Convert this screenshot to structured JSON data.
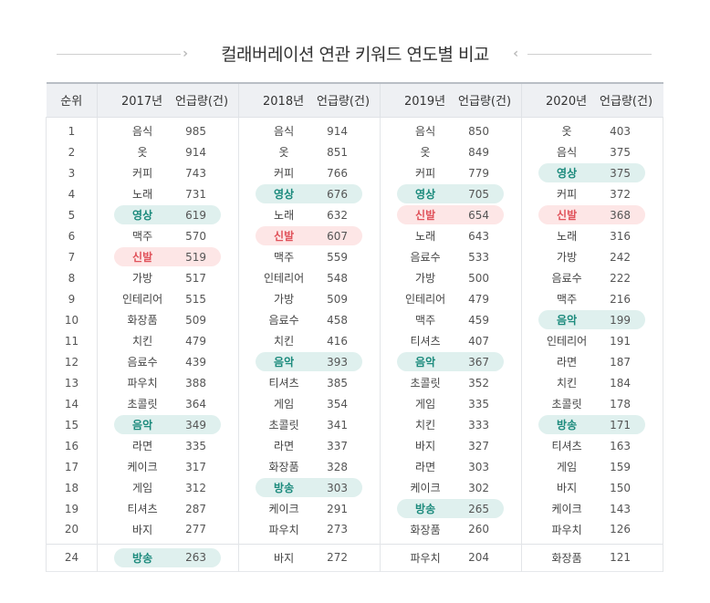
{
  "title": "컬래버레이션 연관 키워드 연도별 비교",
  "header": {
    "rank": "순위",
    "years": [
      "2017년",
      "2018년",
      "2019년",
      "2020년"
    ],
    "mentions": "언급량(건)"
  },
  "colors": {
    "green_highlight_bg": "#dff0ee",
    "green_highlight_text": "#1b8a7c",
    "red_highlight_bg": "#fde6e6",
    "red_highlight_text": "#e0525a"
  },
  "rows": [
    {
      "rank": "1",
      "cells": [
        {
          "kw": "음식",
          "n": "985",
          "hl": ""
        },
        {
          "kw": "음식",
          "n": "914",
          "hl": ""
        },
        {
          "kw": "음식",
          "n": "850",
          "hl": ""
        },
        {
          "kw": "옷",
          "n": "403",
          "hl": ""
        }
      ]
    },
    {
      "rank": "2",
      "cells": [
        {
          "kw": "옷",
          "n": "914",
          "hl": ""
        },
        {
          "kw": "옷",
          "n": "851",
          "hl": ""
        },
        {
          "kw": "옷",
          "n": "849",
          "hl": ""
        },
        {
          "kw": "음식",
          "n": "375",
          "hl": ""
        }
      ]
    },
    {
      "rank": "3",
      "cells": [
        {
          "kw": "커피",
          "n": "743",
          "hl": ""
        },
        {
          "kw": "커피",
          "n": "766",
          "hl": ""
        },
        {
          "kw": "커피",
          "n": "779",
          "hl": ""
        },
        {
          "kw": "영상",
          "n": "375",
          "hl": "green"
        }
      ]
    },
    {
      "rank": "4",
      "cells": [
        {
          "kw": "노래",
          "n": "731",
          "hl": ""
        },
        {
          "kw": "영상",
          "n": "676",
          "hl": "green"
        },
        {
          "kw": "영상",
          "n": "705",
          "hl": "green"
        },
        {
          "kw": "커피",
          "n": "372",
          "hl": ""
        }
      ]
    },
    {
      "rank": "5",
      "cells": [
        {
          "kw": "영상",
          "n": "619",
          "hl": "green"
        },
        {
          "kw": "노래",
          "n": "632",
          "hl": ""
        },
        {
          "kw": "신발",
          "n": "654",
          "hl": "red"
        },
        {
          "kw": "신발",
          "n": "368",
          "hl": "red"
        }
      ]
    },
    {
      "rank": "6",
      "cells": [
        {
          "kw": "맥주",
          "n": "570",
          "hl": ""
        },
        {
          "kw": "신발",
          "n": "607",
          "hl": "red"
        },
        {
          "kw": "노래",
          "n": "643",
          "hl": ""
        },
        {
          "kw": "노래",
          "n": "316",
          "hl": ""
        }
      ]
    },
    {
      "rank": "7",
      "cells": [
        {
          "kw": "신발",
          "n": "519",
          "hl": "red"
        },
        {
          "kw": "맥주",
          "n": "559",
          "hl": ""
        },
        {
          "kw": "음료수",
          "n": "533",
          "hl": ""
        },
        {
          "kw": "가방",
          "n": "242",
          "hl": ""
        }
      ]
    },
    {
      "rank": "8",
      "cells": [
        {
          "kw": "가방",
          "n": "517",
          "hl": ""
        },
        {
          "kw": "인테리어",
          "n": "548",
          "hl": ""
        },
        {
          "kw": "가방",
          "n": "500",
          "hl": ""
        },
        {
          "kw": "음료수",
          "n": "222",
          "hl": ""
        }
      ]
    },
    {
      "rank": "9",
      "cells": [
        {
          "kw": "인테리어",
          "n": "515",
          "hl": ""
        },
        {
          "kw": "가방",
          "n": "509",
          "hl": ""
        },
        {
          "kw": "인테리어",
          "n": "479",
          "hl": ""
        },
        {
          "kw": "맥주",
          "n": "216",
          "hl": ""
        }
      ]
    },
    {
      "rank": "10",
      "cells": [
        {
          "kw": "화장품",
          "n": "509",
          "hl": ""
        },
        {
          "kw": "음료수",
          "n": "458",
          "hl": ""
        },
        {
          "kw": "맥주",
          "n": "459",
          "hl": ""
        },
        {
          "kw": "음악",
          "n": "199",
          "hl": "green"
        }
      ]
    },
    {
      "rank": "11",
      "cells": [
        {
          "kw": "치킨",
          "n": "479",
          "hl": ""
        },
        {
          "kw": "치킨",
          "n": "416",
          "hl": ""
        },
        {
          "kw": "티셔츠",
          "n": "407",
          "hl": ""
        },
        {
          "kw": "인테리어",
          "n": "191",
          "hl": ""
        }
      ]
    },
    {
      "rank": "12",
      "cells": [
        {
          "kw": "음료수",
          "n": "439",
          "hl": ""
        },
        {
          "kw": "음악",
          "n": "393",
          "hl": "green"
        },
        {
          "kw": "음악",
          "n": "367",
          "hl": "green"
        },
        {
          "kw": "라면",
          "n": "187",
          "hl": ""
        }
      ]
    },
    {
      "rank": "13",
      "cells": [
        {
          "kw": "파우치",
          "n": "388",
          "hl": ""
        },
        {
          "kw": "티셔츠",
          "n": "385",
          "hl": ""
        },
        {
          "kw": "초콜릿",
          "n": "352",
          "hl": ""
        },
        {
          "kw": "치킨",
          "n": "184",
          "hl": ""
        }
      ]
    },
    {
      "rank": "14",
      "cells": [
        {
          "kw": "초콜릿",
          "n": "364",
          "hl": ""
        },
        {
          "kw": "게임",
          "n": "354",
          "hl": ""
        },
        {
          "kw": "게임",
          "n": "335",
          "hl": ""
        },
        {
          "kw": "초콜릿",
          "n": "178",
          "hl": ""
        }
      ]
    },
    {
      "rank": "15",
      "cells": [
        {
          "kw": "음악",
          "n": "349",
          "hl": "green"
        },
        {
          "kw": "초콜릿",
          "n": "341",
          "hl": ""
        },
        {
          "kw": "치킨",
          "n": "333",
          "hl": ""
        },
        {
          "kw": "방송",
          "n": "171",
          "hl": "green"
        }
      ]
    },
    {
      "rank": "16",
      "cells": [
        {
          "kw": "라면",
          "n": "335",
          "hl": ""
        },
        {
          "kw": "라면",
          "n": "337",
          "hl": ""
        },
        {
          "kw": "바지",
          "n": "327",
          "hl": ""
        },
        {
          "kw": "티셔츠",
          "n": "163",
          "hl": ""
        }
      ]
    },
    {
      "rank": "17",
      "cells": [
        {
          "kw": "케이크",
          "n": "317",
          "hl": ""
        },
        {
          "kw": "화장품",
          "n": "328",
          "hl": ""
        },
        {
          "kw": "라면",
          "n": "303",
          "hl": ""
        },
        {
          "kw": "게임",
          "n": "159",
          "hl": ""
        }
      ]
    },
    {
      "rank": "18",
      "cells": [
        {
          "kw": "게임",
          "n": "312",
          "hl": ""
        },
        {
          "kw": "방송",
          "n": "303",
          "hl": "green"
        },
        {
          "kw": "케이크",
          "n": "302",
          "hl": ""
        },
        {
          "kw": "바지",
          "n": "150",
          "hl": ""
        }
      ]
    },
    {
      "rank": "19",
      "cells": [
        {
          "kw": "티셔츠",
          "n": "287",
          "hl": ""
        },
        {
          "kw": "케이크",
          "n": "291",
          "hl": ""
        },
        {
          "kw": "방송",
          "n": "265",
          "hl": "green"
        },
        {
          "kw": "케이크",
          "n": "143",
          "hl": ""
        }
      ]
    },
    {
      "rank": "20",
      "cells": [
        {
          "kw": "바지",
          "n": "277",
          "hl": ""
        },
        {
          "kw": "파우치",
          "n": "273",
          "hl": ""
        },
        {
          "kw": "화장품",
          "n": "260",
          "hl": ""
        },
        {
          "kw": "파우치",
          "n": "126",
          "hl": ""
        }
      ]
    }
  ],
  "tail": [
    {
      "rank": "24",
      "cells": [
        {
          "kw": "방송",
          "n": "263",
          "hl": "green"
        },
        {
          "kw": "바지",
          "n": "272",
          "hl": ""
        },
        {
          "kw": "파우치",
          "n": "204",
          "hl": ""
        },
        {
          "kw": "화장품",
          "n": "121",
          "hl": ""
        }
      ]
    }
  ]
}
